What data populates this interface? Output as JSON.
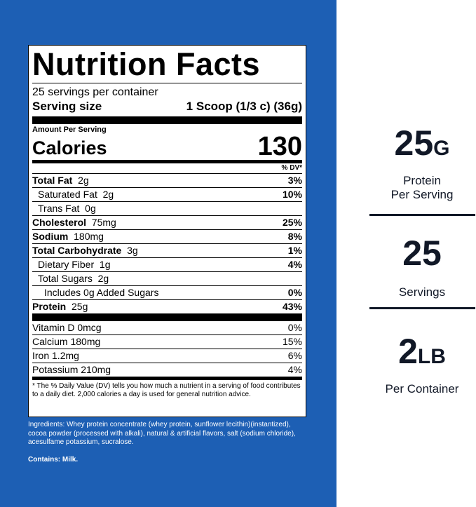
{
  "colors": {
    "panel_blue": "#1d5fb4",
    "stat_text": "#111827"
  },
  "label": {
    "title": "Nutrition Facts",
    "servings_per_container": "25 servings per container",
    "serving_size_label": "Serving size",
    "serving_size_value": "1 Scoop  (1/3 c) (36g)",
    "amount_per_serving": "Amount Per Serving",
    "calories_label": "Calories",
    "calories_value": "130",
    "dv_header": "% DV*",
    "nutrients": [
      {
        "name": "Total Fat",
        "amount": "2g",
        "dv": "3%"
      },
      {
        "name": "Saturated Fat",
        "amount": "2g",
        "dv": "10%"
      },
      {
        "name": "Trans Fat",
        "amount": "0g",
        "dv": ""
      },
      {
        "name": "Cholesterol",
        "amount": "75mg",
        "dv": "25%"
      },
      {
        "name": "Sodium",
        "amount": "180mg",
        "dv": "8%"
      },
      {
        "name": "Total Carbohydrate",
        "amount": "3g",
        "dv": "1%"
      },
      {
        "name": "Dietary Fiber",
        "amount": "1g",
        "dv": "4%"
      },
      {
        "name": "Total Sugars",
        "amount": "2g",
        "dv": ""
      },
      {
        "name": "Includes 0g Added Sugars",
        "amount": "",
        "dv": "0%"
      },
      {
        "name": "Protein",
        "amount": "25g",
        "dv": "43%"
      }
    ],
    "vitamins": [
      {
        "text": "Vitamin D  0mcg",
        "dv": "0%"
      },
      {
        "text": "Calcium  180mg",
        "dv": "15%"
      },
      {
        "text": "Iron  1.2mg",
        "dv": "6%"
      },
      {
        "text": "Potassium  210mg",
        "dv": "4%"
      }
    ],
    "footnote": "* The % Daily Value (DV) tells you how much a nutrient in a serving of food contributes to a daily diet. 2,000 calories a day is used for general nutrition advice."
  },
  "ingredients": "Ingredients: Whey protein concentrate (whey protein, sunflower lecithin)(instantized), cocoa powder (processed with alkali), natural & artificial flavors, salt (sodium chloride), acesulfame potassium, sucralose.",
  "contains": "Contains: Milk.",
  "stats": [
    {
      "value": "25",
      "unit": "G",
      "line1": "Protein",
      "line2": "Per Serving"
    },
    {
      "value": "25",
      "unit": "",
      "line1": "Servings",
      "line2": ""
    },
    {
      "value": "2",
      "unit": "LB",
      "line1": "Per Container",
      "line2": ""
    }
  ]
}
